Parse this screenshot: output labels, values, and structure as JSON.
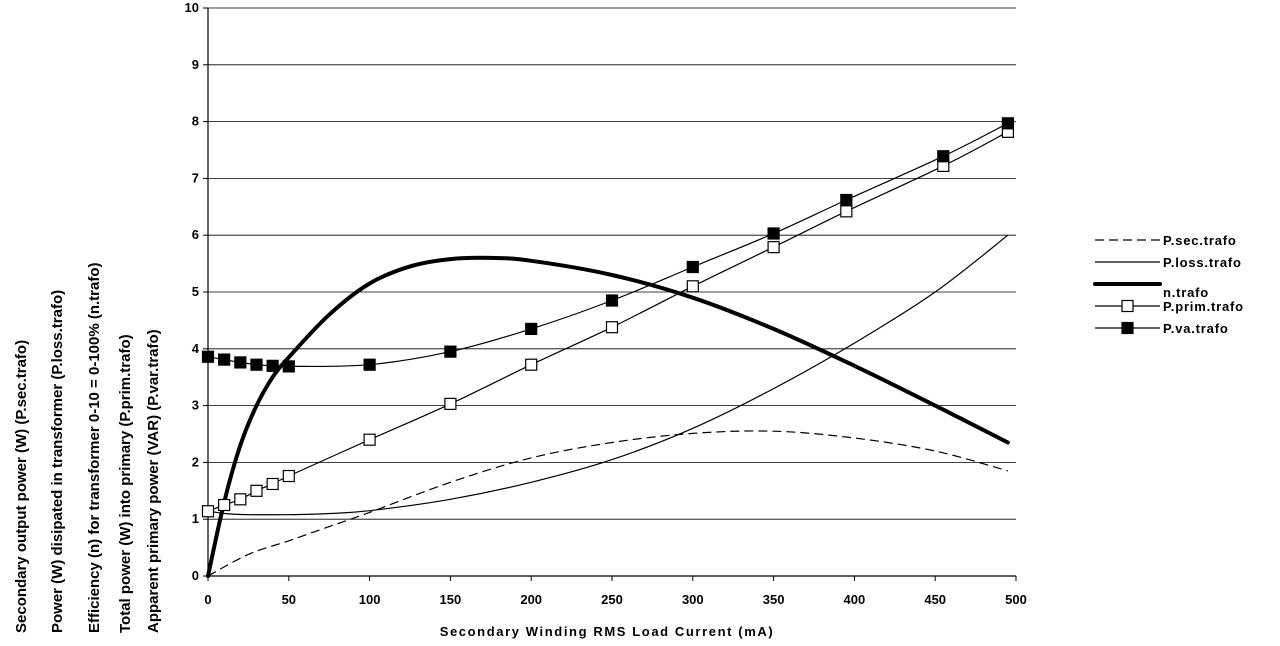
{
  "chart_data": {
    "type": "line",
    "xlabel": "Secondary Winding RMS Load Current (mA)",
    "ylabels": [
      "Secondary output power (W) (P.sec.trafo)",
      "Power (W) disipated in transformer (P.loss.trafo)",
      "Efficiency (n) for transformer 0-10 = 0-100% (n.trafo)",
      "Total power (W) into primary (P.prim.trafo)",
      "Apparent primary power (VAR) (P.var.trafo)"
    ],
    "xlim": [
      0,
      500
    ],
    "ylim": [
      0,
      10
    ],
    "xticks": [
      0,
      50,
      100,
      150,
      200,
      250,
      300,
      350,
      400,
      450,
      500
    ],
    "yticks": [
      0,
      1,
      2,
      3,
      4,
      5,
      6,
      7,
      8,
      9,
      10
    ],
    "grid": "horizontal",
    "legend_position": "right",
    "series": [
      {
        "name": "P.sec.trafo",
        "style": "dashed",
        "x": [
          0,
          25,
          50,
          75,
          100,
          150,
          200,
          250,
          300,
          350,
          400,
          450,
          495
        ],
        "y": [
          0,
          0.38,
          0.62,
          0.87,
          1.12,
          1.65,
          2.08,
          2.35,
          2.51,
          2.55,
          2.43,
          2.2,
          1.85
        ]
      },
      {
        "name": "P.loss.trafo",
        "style": "thin",
        "x": [
          0,
          10,
          25,
          50,
          75,
          100,
          150,
          200,
          250,
          300,
          350,
          400,
          450,
          495
        ],
        "y": [
          1.15,
          1.1,
          1.08,
          1.08,
          1.1,
          1.15,
          1.35,
          1.65,
          2.05,
          2.6,
          3.3,
          4.1,
          5.0,
          6.0
        ]
      },
      {
        "name": "n.trafo",
        "style": "thick",
        "x": [
          0,
          10,
          20,
          30,
          40,
          50,
          75,
          100,
          125,
          150,
          175,
          200,
          250,
          300,
          350,
          400,
          450,
          495
        ],
        "y": [
          0,
          1.3,
          2.3,
          3.0,
          3.5,
          3.85,
          4.6,
          5.15,
          5.45,
          5.58,
          5.6,
          5.55,
          5.3,
          4.9,
          4.35,
          3.7,
          3.0,
          2.35
        ]
      },
      {
        "name": "P.prim.trafo",
        "marker": "open-square",
        "x": [
          0,
          10,
          20,
          30,
          40,
          50,
          100,
          150,
          200,
          250,
          300,
          350,
          395,
          455,
          495
        ],
        "y": [
          1.14,
          1.25,
          1.35,
          1.5,
          1.62,
          1.76,
          2.4,
          3.03,
          3.72,
          4.38,
          5.1,
          5.79,
          6.42,
          7.22,
          7.82
        ]
      },
      {
        "name": "P.va.trafo",
        "marker": "filled-square",
        "x": [
          0,
          10,
          20,
          30,
          40,
          50,
          100,
          150,
          200,
          250,
          300,
          350,
          395,
          455,
          495
        ],
        "y": [
          3.86,
          3.81,
          3.76,
          3.72,
          3.7,
          3.69,
          3.72,
          3.95,
          4.35,
          4.85,
          5.44,
          6.03,
          6.62,
          7.39,
          7.97
        ]
      }
    ]
  }
}
